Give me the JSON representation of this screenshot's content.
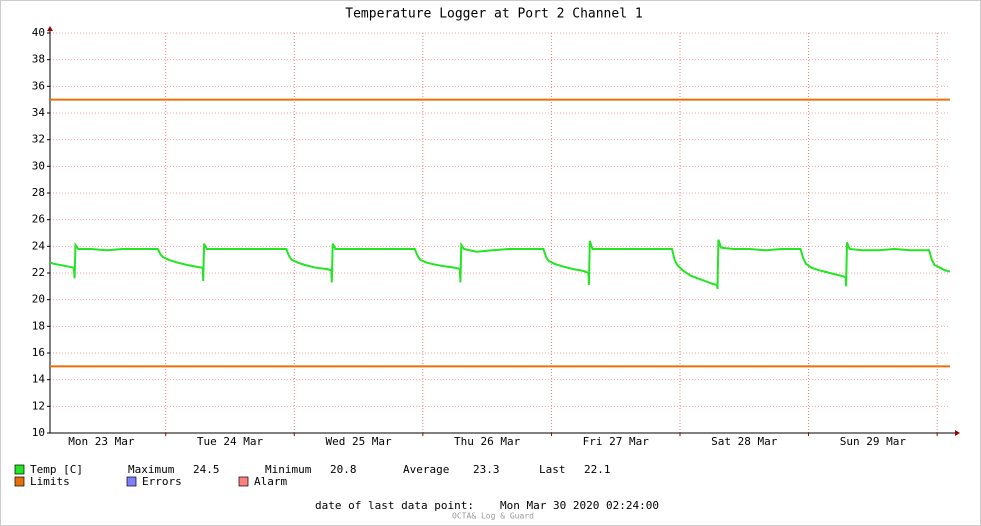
{
  "chart_data": {
    "type": "line",
    "title": "Temperature Logger at Port 2 Channel 1",
    "xlim": [
      "2020-03-23 02:24",
      "2020-03-30 02:24"
    ],
    "xticks": [
      {
        "value": "2020-03-23 12:00",
        "label": "Mon 23 Mar"
      },
      {
        "value": "2020-03-24 12:00",
        "label": "Tue 24 Mar"
      },
      {
        "value": "2020-03-25 12:00",
        "label": "Wed 25 Mar"
      },
      {
        "value": "2020-03-26 12:00",
        "label": "Thu 26 Mar"
      },
      {
        "value": "2020-03-27 12:00",
        "label": "Fri 27 Mar"
      },
      {
        "value": "2020-03-28 12:00",
        "label": "Sat 28 Mar"
      },
      {
        "value": "2020-03-29 12:00",
        "label": "Sun 29 Mar"
      }
    ],
    "xgrid": [
      "2020-03-24 00:00",
      "2020-03-25 00:00",
      "2020-03-26 00:00",
      "2020-03-27 00:00",
      "2020-03-28 00:00",
      "2020-03-29 00:00",
      "2020-03-30 00:00"
    ],
    "ylim": [
      10,
      40
    ],
    "yticks": [
      10,
      12,
      14,
      16,
      18,
      20,
      22,
      24,
      26,
      28,
      30,
      32,
      34,
      36,
      38,
      40
    ],
    "grid": true,
    "x": [
      "2020-03-23 02:24",
      "2020-03-23 03:00",
      "2020-03-23 05:00",
      "2020-03-23 06:50",
      "2020-03-23 07:00",
      "2020-03-23 07:10",
      "2020-03-23 07:40",
      "2020-03-23 10:00",
      "2020-03-23 13:00",
      "2020-03-23 16:00",
      "2020-03-23 19:00",
      "2020-03-23 22:30",
      "2020-03-23 23:00",
      "2020-03-23 23:30",
      "2020-03-24 00:30",
      "2020-03-24 02:00",
      "2020-03-24 04:00",
      "2020-03-24 06:00",
      "2020-03-24 06:55",
      "2020-03-24 07:00",
      "2020-03-24 07:10",
      "2020-03-24 07:40",
      "2020-03-24 10:00",
      "2020-03-24 13:00",
      "2020-03-24 16:00",
      "2020-03-24 19:00",
      "2020-03-24 22:30",
      "2020-03-24 23:00",
      "2020-03-24 23:30",
      "2020-03-25 00:30",
      "2020-03-25 02:00",
      "2020-03-25 04:00",
      "2020-03-25 06:00",
      "2020-03-25 06:55",
      "2020-03-25 07:00",
      "2020-03-25 07:10",
      "2020-03-25 07:40",
      "2020-03-25 10:00",
      "2020-03-25 13:00",
      "2020-03-25 16:00",
      "2020-03-25 19:00",
      "2020-03-25 22:30",
      "2020-03-25 23:00",
      "2020-03-25 23:30",
      "2020-03-26 00:30",
      "2020-03-26 02:00",
      "2020-03-26 04:00",
      "2020-03-26 06:00",
      "2020-03-26 06:55",
      "2020-03-26 07:00",
      "2020-03-26 07:10",
      "2020-03-26 07:40",
      "2020-03-26 10:00",
      "2020-03-26 13:00",
      "2020-03-26 16:00",
      "2020-03-26 19:00",
      "2020-03-26 22:30",
      "2020-03-26 23:00",
      "2020-03-26 23:30",
      "2020-03-27 00:30",
      "2020-03-27 02:00",
      "2020-03-27 04:00",
      "2020-03-27 06:00",
      "2020-03-27 06:55",
      "2020-03-27 07:00",
      "2020-03-27 07:10",
      "2020-03-27 07:40",
      "2020-03-27 10:00",
      "2020-03-27 13:00",
      "2020-03-27 16:00",
      "2020-03-27 19:00",
      "2020-03-27 22:30",
      "2020-03-27 23:00",
      "2020-03-27 23:30",
      "2020-03-28 00:30",
      "2020-03-28 02:00",
      "2020-03-28 04:00",
      "2020-03-28 06:00",
      "2020-03-28 06:55",
      "2020-03-28 07:00",
      "2020-03-28 07:10",
      "2020-03-28 07:40",
      "2020-03-28 10:00",
      "2020-03-28 13:00",
      "2020-03-28 16:00",
      "2020-03-28 19:00",
      "2020-03-28 22:30",
      "2020-03-28 23:00",
      "2020-03-28 23:30",
      "2020-03-29 00:30",
      "2020-03-29 02:00",
      "2020-03-29 04:00",
      "2020-03-29 06:00",
      "2020-03-29 06:55",
      "2020-03-29 07:00",
      "2020-03-29 07:10",
      "2020-03-29 07:40",
      "2020-03-29 10:00",
      "2020-03-29 13:00",
      "2020-03-29 16:00",
      "2020-03-29 19:00",
      "2020-03-29 22:30",
      "2020-03-29 23:00",
      "2020-03-29 23:30",
      "2020-03-30 00:30",
      "2020-03-30 01:30",
      "2020-03-30 02:24"
    ],
    "series": [
      {
        "name": "Temp [C]",
        "color": "#22e622",
        "values": [
          22.8,
          22.7,
          22.55,
          22.4,
          21.6,
          24.1,
          23.8,
          23.8,
          23.7,
          23.8,
          23.8,
          23.8,
          23.4,
          23.2,
          23.0,
          22.8,
          22.6,
          22.45,
          22.4,
          21.4,
          24.2,
          23.8,
          23.8,
          23.8,
          23.8,
          23.8,
          23.8,
          23.3,
          23.0,
          22.8,
          22.6,
          22.4,
          22.3,
          22.2,
          21.3,
          24.2,
          23.8,
          23.8,
          23.8,
          23.8,
          23.8,
          23.8,
          23.3,
          23.0,
          22.8,
          22.65,
          22.5,
          22.4,
          22.3,
          21.3,
          24.1,
          23.8,
          23.6,
          23.7,
          23.8,
          23.8,
          23.8,
          23.2,
          22.9,
          22.7,
          22.5,
          22.3,
          22.15,
          22.0,
          21.1,
          24.4,
          23.8,
          23.8,
          23.8,
          23.8,
          23.8,
          23.8,
          23.0,
          22.6,
          22.2,
          21.8,
          21.5,
          21.2,
          21.1,
          20.8,
          24.5,
          23.9,
          23.8,
          23.8,
          23.7,
          23.8,
          23.8,
          23.1,
          22.7,
          22.4,
          22.2,
          22.0,
          21.8,
          21.7,
          21.0,
          24.3,
          23.8,
          23.7,
          23.7,
          23.8,
          23.7,
          23.7,
          23.0,
          22.6,
          22.4,
          22.2,
          22.1
        ]
      }
    ],
    "limits": {
      "name": "Limits",
      "color": "#e8700a",
      "values": [
        15,
        35
      ]
    },
    "stats": [
      {
        "label": "Maximum",
        "value": 24.5
      },
      {
        "label": "Minimum",
        "value": 20.8
      },
      {
        "label": "Average",
        "value": 23.3
      },
      {
        "label": "Last",
        "value": 22.1
      }
    ],
    "legend_extra": [
      {
        "name": "Errors",
        "color": "#7f7fff"
      },
      {
        "name": "Alarm",
        "color": "#ff7f7f"
      }
    ],
    "footer_label": "date of last data point:",
    "footer_value": "Mon Mar 30 2020 02:24:00",
    "watermark": "OCTA& Log & Guard"
  }
}
